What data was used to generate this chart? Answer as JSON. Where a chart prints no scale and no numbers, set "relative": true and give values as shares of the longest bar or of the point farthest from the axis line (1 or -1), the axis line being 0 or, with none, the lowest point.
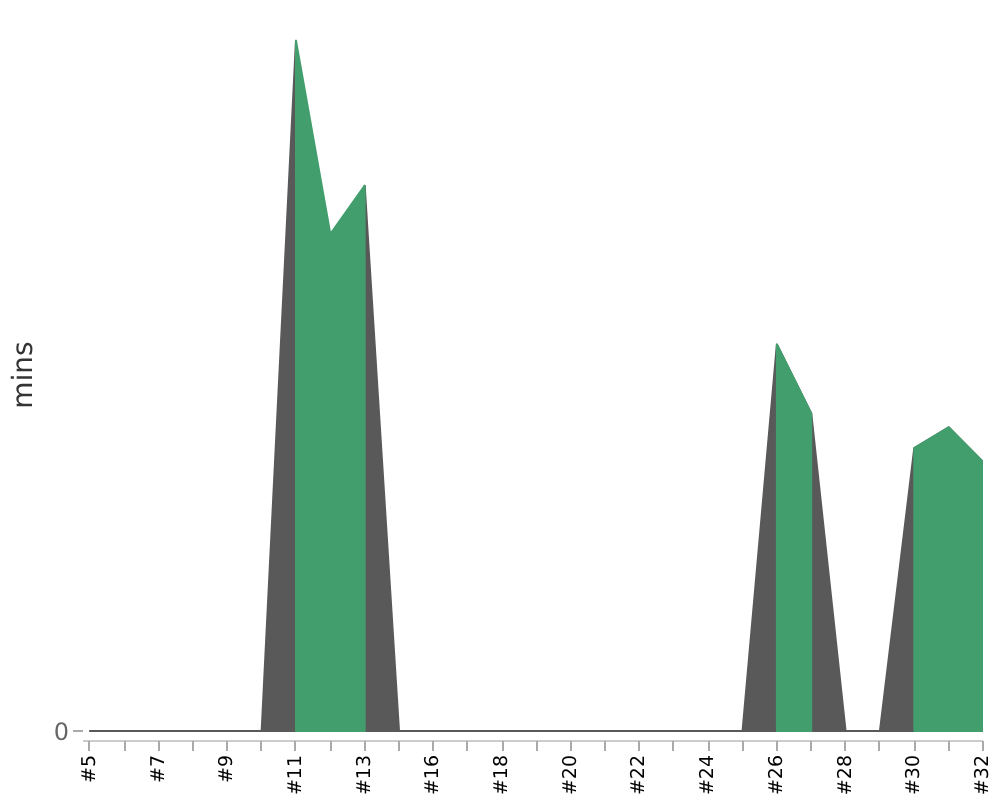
{
  "chart_data": {
    "type": "area",
    "relative": true,
    "ylabel": "mins",
    "annotations": [
      "0"
    ],
    "categories": [
      "#5",
      null,
      "#7",
      null,
      "#9",
      null,
      "#11",
      null,
      "#13",
      null,
      "#16",
      null,
      "#18",
      null,
      "#20",
      null,
      "#22",
      null,
      "#24",
      null,
      "#26",
      null,
      "#28",
      null,
      "#30",
      null,
      "#32"
    ],
    "series": [
      {
        "color": "#595959",
        "values": [
          0,
          0,
          0,
          0,
          0,
          0,
          1.0,
          null,
          0.79,
          0,
          0,
          0,
          0,
          0,
          0,
          0,
          0,
          0,
          0,
          0,
          0.56,
          0.46,
          0,
          0,
          0.41,
          0.44,
          0.39
        ]
      },
      {
        "color": "#429e6d",
        "values": [
          null,
          null,
          null,
          null,
          null,
          null,
          1.0,
          0.72,
          0.79,
          null,
          null,
          null,
          null,
          null,
          null,
          null,
          null,
          null,
          null,
          null,
          0.56,
          0.46,
          null,
          null,
          0.41,
          0.44,
          0.39
        ]
      }
    ]
  }
}
